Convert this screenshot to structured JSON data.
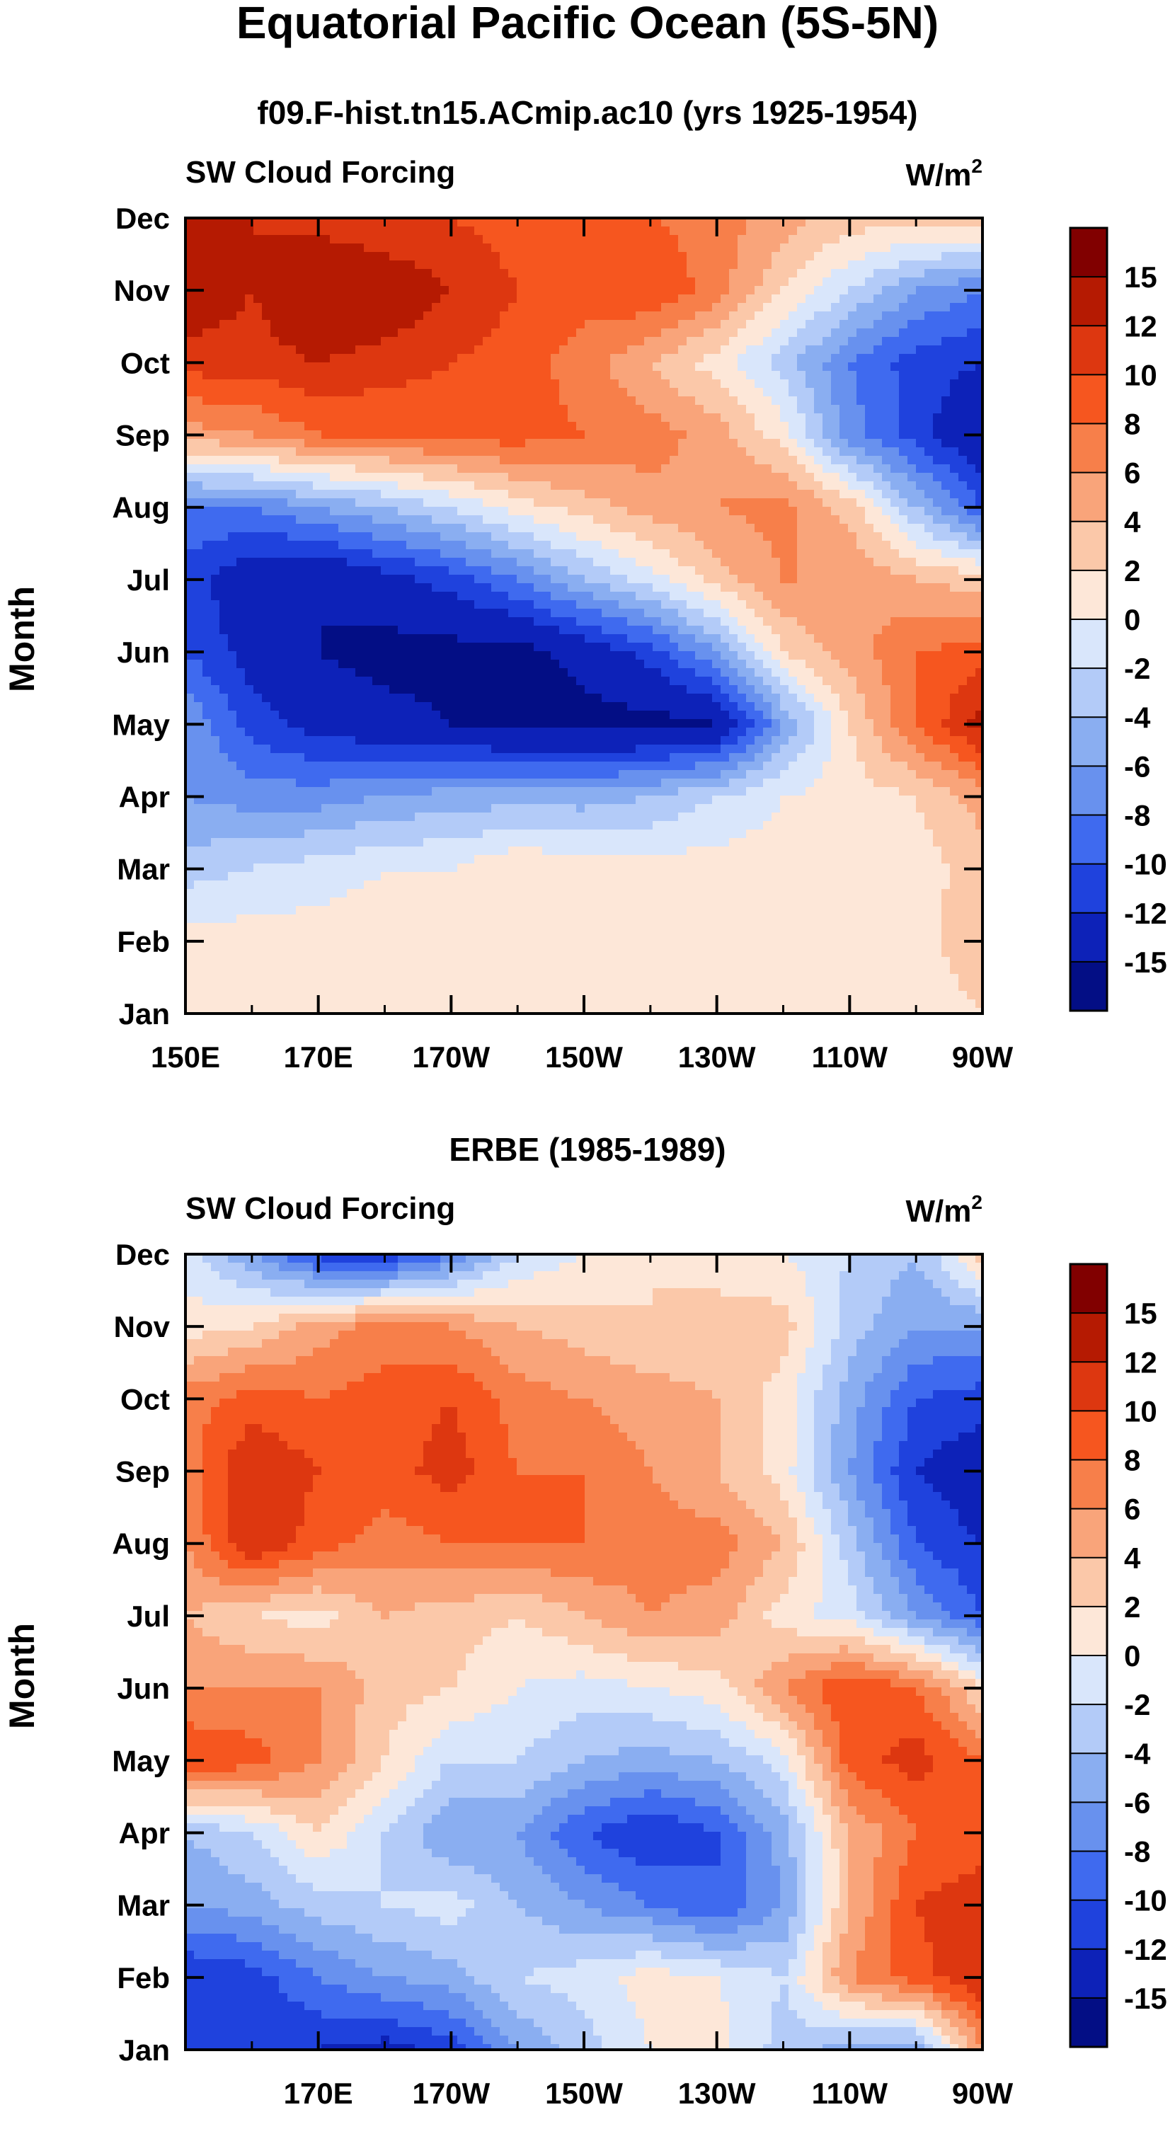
{
  "figure": {
    "title": "Equatorial Pacific Ocean (5S-5N)"
  },
  "colorbar": {
    "levels": [
      "15",
      "12",
      "10",
      "8",
      "6",
      "4",
      "2",
      "0",
      "-2",
      "-4",
      "-6",
      "-8",
      "-10",
      "-12",
      "-15"
    ],
    "colors": [
      "#810000",
      "#b51a02",
      "#dd3710",
      "#f6561f",
      "#f77f4a",
      "#f9a47a",
      "#fbc8a9",
      "#fde7d8",
      "#d9e6fb",
      "#b3cbf8",
      "#8aaef1",
      "#6891ee",
      "#3f6aef",
      "#1f42dd",
      "#0d22b8",
      "#030e85"
    ]
  },
  "chart_data": [
    {
      "type": "heatmap",
      "title": "f09.F-hist.tn15.ACmip.ac10 (yrs 1925-1954)",
      "left_string": "SW Cloud Forcing",
      "right_string": "W/m",
      "right_string_sup": "2",
      "ylabel": "Month",
      "yticks": [
        "Dec",
        "Nov",
        "Oct",
        "Sep",
        "Aug",
        "Jul",
        "Jun",
        "May",
        "Apr",
        "Mar",
        "Feb",
        "Jan"
      ],
      "xticks": [
        "150E",
        "170E",
        "170W",
        "150W",
        "130W",
        "110W",
        "90W"
      ],
      "x_lon": [
        150,
        170,
        190,
        210,
        230,
        250,
        270
      ],
      "xlim": [
        150,
        270
      ],
      "months": [
        "Jan",
        "Feb",
        "Mar",
        "Apr",
        "May",
        "Jun",
        "Jul",
        "Aug",
        "Sep",
        "Oct",
        "Nov",
        "Dec"
      ],
      "values": [
        [
          1,
          2,
          1,
          1,
          0,
          1,
          1,
          1,
          1,
          1,
          1,
          0,
          2
        ],
        [
          1,
          1,
          1,
          1,
          1,
          2,
          1,
          1,
          1,
          1,
          1,
          1,
          4
        ],
        [
          -3,
          -2,
          -1,
          0,
          0,
          2,
          1,
          1,
          1,
          1,
          1,
          1,
          3
        ],
        [
          -6,
          -7,
          -7,
          -6,
          -5,
          -5,
          -5,
          -4,
          -2,
          0,
          1,
          2,
          5
        ],
        [
          -6,
          -11,
          -13,
          -14,
          -15,
          -16,
          -16,
          -16,
          -15,
          -6,
          2,
          8,
          13
        ],
        [
          -10,
          -13,
          -15,
          -16,
          -16,
          -16,
          -14,
          -11,
          -6,
          2,
          5,
          8,
          9
        ],
        [
          -11,
          -14,
          -15,
          -13,
          -11,
          -8,
          -4,
          -1,
          3,
          6,
          6,
          4,
          3
        ],
        [
          -8,
          -8,
          -6,
          -4,
          -2,
          1,
          3,
          5,
          6,
          7,
          3,
          -4,
          -10
        ],
        [
          5,
          6,
          8,
          8,
          9,
          9,
          8,
          7,
          5,
          1,
          -7,
          -11,
          -15
        ],
        [
          11,
          11,
          12,
          11,
          10,
          9,
          7,
          4,
          1,
          -3,
          -8,
          -11,
          -12
        ],
        [
          14,
          12,
          15,
          14,
          12,
          10,
          9,
          10,
          7,
          2,
          -2,
          -6,
          -8
        ],
        [
          13,
          12,
          11,
          10,
          10,
          9,
          9,
          8,
          7,
          5,
          3,
          3,
          4
        ]
      ]
    },
    {
      "type": "heatmap",
      "title": "ERBE (1985-1989)",
      "left_string": "SW Cloud Forcing",
      "right_string": "W/m",
      "right_string_sup": "2",
      "ylabel": "Month",
      "yticks": [
        "Dec",
        "Nov",
        "Oct",
        "Sep",
        "Aug",
        "Jul",
        "Jun",
        "May",
        "Apr",
        "Mar",
        "Feb",
        "Jan"
      ],
      "xticks": [
        "170E",
        "170W",
        "150W",
        "130W",
        "110W",
        "90W"
      ],
      "x_lon": [
        170,
        190,
        210,
        230,
        250,
        270
      ],
      "xlim": [
        150,
        270
      ],
      "months": [
        "Jan",
        "Feb",
        "Mar",
        "Apr",
        "May",
        "Jun",
        "Jul",
        "Aug",
        "Sep",
        "Oct",
        "Nov",
        "Dec"
      ],
      "values": [
        [
          -11,
          -12,
          -12,
          -13,
          -11,
          -6,
          -3,
          0,
          1,
          -3,
          -5,
          -6,
          6
        ],
        [
          -12,
          -11,
          -8,
          -6,
          -5,
          -2,
          -1,
          1,
          0,
          -2,
          6,
          9,
          12
        ],
        [
          -6,
          -5,
          -3,
          -2,
          -1,
          -4,
          -6,
          -8,
          -10,
          -6,
          4,
          10,
          12
        ],
        [
          -4,
          -2,
          2,
          -2,
          -6,
          -6,
          -10,
          -12,
          -10,
          -5,
          4,
          8,
          8
        ],
        [
          10,
          9,
          6,
          2,
          -2,
          -2,
          -4,
          -5,
          -4,
          -1,
          9,
          11,
          8
        ],
        [
          6,
          6,
          6,
          3,
          2,
          0,
          -1,
          0,
          1,
          6,
          10,
          8,
          2
        ],
        [
          4,
          2,
          1,
          4,
          3,
          2,
          4,
          6,
          5,
          1,
          -1,
          -6,
          -10
        ],
        [
          6,
          12,
          9,
          7,
          8,
          8,
          8,
          7,
          7,
          4,
          -3,
          -10,
          -12
        ],
        [
          7,
          12,
          10,
          9,
          11,
          8,
          8,
          6,
          4,
          1,
          -6,
          -12,
          -14
        ],
        [
          7,
          9,
          8,
          9,
          10,
          7,
          6,
          5,
          4,
          1,
          -5,
          -10,
          -11
        ],
        [
          1,
          2,
          5,
          7,
          6,
          4,
          3,
          2,
          3,
          3,
          -3,
          -6,
          -6
        ],
        [
          -1,
          -6,
          -11,
          -12,
          -8,
          -2,
          0,
          2,
          1,
          0,
          -2,
          -4,
          3
        ]
      ]
    }
  ]
}
